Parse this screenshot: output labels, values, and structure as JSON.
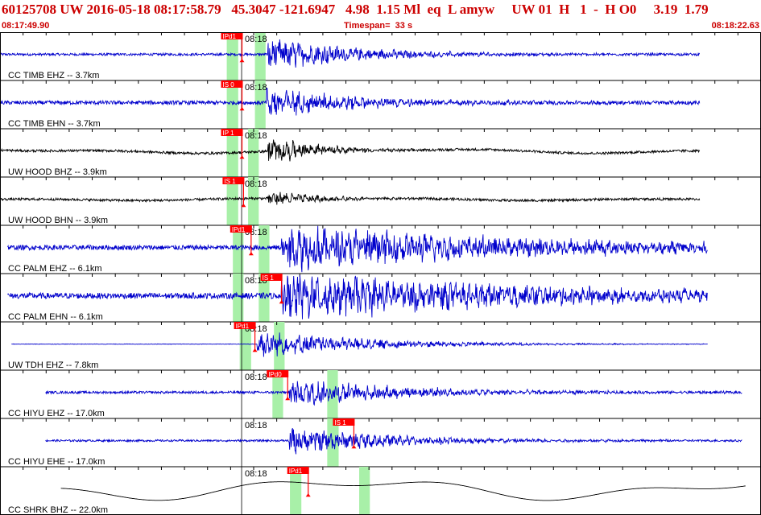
{
  "header": {
    "event_line": "60125708 UW 2016-05-18 08:17:58.79   45.3047 -121.6947   4.98  1.15 Ml  eq  L amyw     UW 01  H   1  -  H O0     3.19  1.79",
    "start_time": "08:17:49.90",
    "timespan": "Timespan=  33 s",
    "end_time": "08:18:22.63"
  },
  "colors": {
    "trace_blue": "#0000cc",
    "trace_black": "#000000",
    "pick_red": "#ff0000",
    "window_green": "#a8f0a8"
  },
  "chart_data": {
    "type": "seismogram",
    "time_start": "08:17:49.90",
    "time_end": "08:18:22.63",
    "timespan_s": 33,
    "minute_tick_label": "08:18",
    "traces": [
      {
        "label": "CC TIMB EHZ -- 3.7km",
        "color": "blue",
        "pick": "IPd1",
        "pick_side": "P",
        "win": [
          0.298,
          0.313
        ],
        "pick_t": 0.318,
        "onset_t": 0.352,
        "amp": 0.55,
        "noise": 0.05,
        "start": 0.0,
        "end": 0.92,
        "decay": 0.12,
        "lowfreq": 0
      },
      {
        "label": "CC TIMB EHN -- 3.7km",
        "color": "blue",
        "pick": "IS 0",
        "pick_side": "S",
        "win": [
          0.298,
          0.313
        ],
        "pick_t": 0.318,
        "onset_t": 0.35,
        "amp": 0.5,
        "noise": 0.08,
        "start": 0.0,
        "end": 0.92,
        "decay": 0.12,
        "lowfreq": 0
      },
      {
        "label": "UW HOOD BHZ -- 3.9km",
        "color": "black",
        "pick": "IP 1",
        "pick_side": "P",
        "win": [
          0.298,
          0.313
        ],
        "pick_t": 0.318,
        "onset_t": 0.352,
        "amp": 0.5,
        "noise": 0.05,
        "start": 0.0,
        "end": 0.92,
        "decay": 0.06,
        "lowfreq": 0.18
      },
      {
        "label": "UW HOOD BHN -- 3.9km",
        "color": "black",
        "pick": "IS 1",
        "pick_side": "S",
        "win": [
          0.298,
          0.313
        ],
        "pick_t": 0.32,
        "onset_t": 0.352,
        "amp": 0.28,
        "noise": 0.05,
        "start": 0.0,
        "end": 0.92,
        "decay": 0.06,
        "lowfreq": 0.1
      },
      {
        "label": "CC PALM EHZ -- 6.1km",
        "color": "blue",
        "pick": "IPd1",
        "pick_side": "P",
        "win": [
          0.306,
          0.32
        ],
        "pick_t": 0.33,
        "onset_t": 0.37,
        "amp": 0.75,
        "noise": 0.1,
        "start": 0.01,
        "end": 0.93,
        "decay": 0.35,
        "lowfreq": 0
      },
      {
        "label": "CC PALM EHN -- 6.1km",
        "color": "blue",
        "pick": "IS 1",
        "pick_side": "S",
        "win": [
          0.306,
          0.32
        ],
        "pick_t": 0.37,
        "onset_t": 0.37,
        "amp": 0.8,
        "noise": 0.12,
        "start": 0.01,
        "end": 0.93,
        "decay": 0.35,
        "lowfreq": 0
      },
      {
        "label": "UW TDH EHZ -- 7.8km",
        "color": "blue",
        "pick": "IPd1",
        "pick_side": "P",
        "win": [
          0.315,
          0.33
        ],
        "pick_t": 0.335,
        "onset_t": 0.338,
        "amp": 0.45,
        "noise": 0.01,
        "start": 0.015,
        "end": 0.93,
        "decay": 0.15,
        "lowfreq": 0
      },
      {
        "label": "CC HIYU EHZ -- 17.0km",
        "color": "blue",
        "pick": "IPd0",
        "pick_side": "P",
        "win": [
          0.358,
          0.372
        ],
        "pick_t": 0.378,
        "onset_t": 0.38,
        "amp": 0.5,
        "noise": 0.05,
        "start": 0.06,
        "end": 0.975,
        "decay": 0.15,
        "lowfreq": 0
      },
      {
        "label": "CC HIYU EHE -- 17.0km",
        "color": "blue",
        "pick": "IS 1",
        "pick_side": "S",
        "win": [
          0.431,
          0.445
        ],
        "pick_t": 0.465,
        "onset_t": 0.38,
        "amp": 0.45,
        "noise": 0.04,
        "start": 0.06,
        "end": 0.975,
        "decay": 0.15,
        "lowfreq": 0
      },
      {
        "label": "CC SHRK BHZ -- 22.0km",
        "color": "black",
        "pick": "IPd1",
        "pick_side": "P",
        "win": [
          0.381,
          0.396
        ],
        "pick_t": 0.405,
        "onset_t": 0.41,
        "amp": 0.0,
        "noise": 0.0,
        "start": 0.08,
        "end": 0.98,
        "decay": 0.2,
        "lowfreq": 0.9
      }
    ],
    "s_windows": [
      [
        0.335,
        0.349
      ],
      [
        0.335,
        0.349
      ],
      [
        0.326,
        0.34
      ],
      [
        0.326,
        0.34
      ],
      [
        0.34,
        0.354
      ],
      [
        0.34,
        0.354
      ],
      [
        0.36,
        0.374
      ],
      [
        0.43,
        0.444
      ],
      [
        0.43,
        0.444
      ],
      [
        0.472,
        0.486
      ]
    ],
    "grid": "vertical 1 s ticks on each trace frame"
  }
}
